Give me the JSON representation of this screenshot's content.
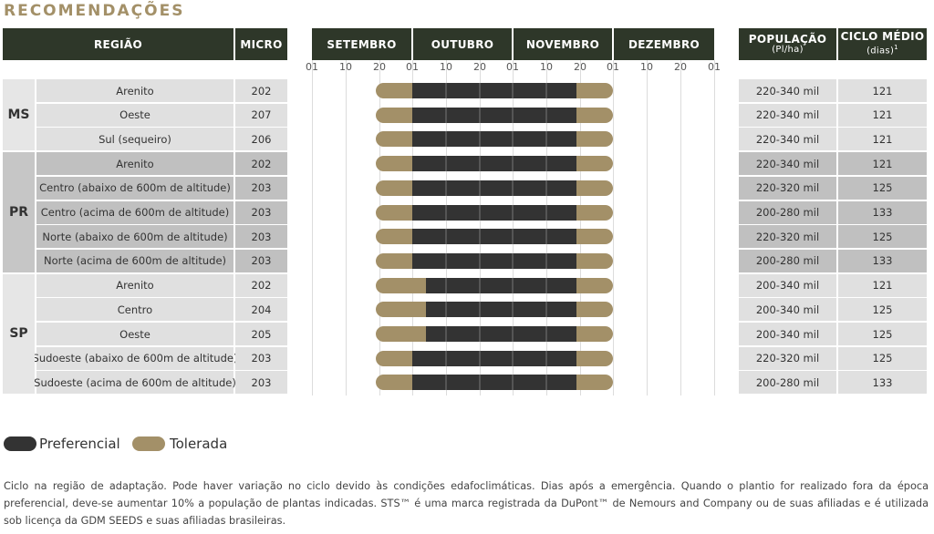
{
  "title": "RECOMENDAÇÕES",
  "headers": {
    "regiao": "REGIÃO",
    "micro": "MICRO",
    "months": [
      "SETEMBRO",
      "OUTUBRO",
      "NOVEMBRO",
      "DEZEMBRO"
    ],
    "populacao": "POPULAÇÃO",
    "populacao_sub": "(Pl/ha)",
    "ciclo": "CICLO MÉDIO",
    "ciclo_sub": "(dias)",
    "ciclo_sup": "1"
  },
  "day_ticks": [
    "01",
    "10",
    "20",
    "01",
    "10",
    "20",
    "01",
    "10",
    "20",
    "01",
    "10",
    "20",
    "01"
  ],
  "groups": [
    {
      "state": "MS",
      "rows": [
        {
          "region": "Arenito",
          "micro": "202",
          "pop": "220-340 mil",
          "ciclo": "121",
          "tolerated_start": "20 SET",
          "preferential_start": "01 OUT",
          "preferential_end": "20 NOV",
          "tolerated_end": "01 DEZ"
        },
        {
          "region": "Oeste",
          "micro": "207",
          "pop": "220-340 mil",
          "ciclo": "121",
          "tolerated_start": "20 SET",
          "preferential_start": "01 OUT",
          "preferential_end": "20 NOV",
          "tolerated_end": "01 DEZ"
        },
        {
          "region": "Sul (sequeiro)",
          "micro": "206",
          "pop": "220-340 mil",
          "ciclo": "121",
          "tolerated_start": "20 SET",
          "preferential_start": "01 OUT",
          "preferential_end": "20 NOV",
          "tolerated_end": "01 DEZ"
        }
      ]
    },
    {
      "state": "PR",
      "rows": [
        {
          "region": "Arenito",
          "micro": "202",
          "pop": "220-340 mil",
          "ciclo": "121",
          "tolerated_start": "20 SET",
          "preferential_start": "01 OUT",
          "preferential_end": "20 NOV",
          "tolerated_end": "01 DEZ"
        },
        {
          "region": "Centro (abaixo de 600m de altitude)",
          "micro": "203",
          "pop": "220-320 mil",
          "ciclo": "125",
          "tolerated_start": "20 SET",
          "preferential_start": "01 OUT",
          "preferential_end": "20 NOV",
          "tolerated_end": "01 DEZ"
        },
        {
          "region": "Centro (acima de 600m de altitude)",
          "micro": "203",
          "pop": "200-280 mil",
          "ciclo": "133",
          "tolerated_start": "20 SET",
          "preferential_start": "01 OUT",
          "preferential_end": "20 NOV",
          "tolerated_end": "01 DEZ"
        },
        {
          "region": "Norte (abaixo de 600m de altitude)",
          "micro": "203",
          "pop": "220-320 mil",
          "ciclo": "125",
          "tolerated_start": "20 SET",
          "preferential_start": "01 OUT",
          "preferential_end": "20 NOV",
          "tolerated_end": "01 DEZ"
        },
        {
          "region": "Norte (acima de 600m de altitude)",
          "micro": "203",
          "pop": "200-280 mil",
          "ciclo": "133",
          "tolerated_start": "20 SET",
          "preferential_start": "01 OUT",
          "preferential_end": "20 NOV",
          "tolerated_end": "01 DEZ"
        }
      ]
    },
    {
      "state": "SP",
      "rows": [
        {
          "region": "Arenito",
          "micro": "202",
          "pop": "200-340 mil",
          "ciclo": "121",
          "tolerated_start": "20 SET",
          "preferential_start": "05 OUT",
          "preferential_end": "20 NOV",
          "tolerated_end": "01 DEZ"
        },
        {
          "region": "Centro",
          "micro": "204",
          "pop": "200-340 mil",
          "ciclo": "125",
          "tolerated_start": "20 SET",
          "preferential_start": "05 OUT",
          "preferential_end": "20 NOV",
          "tolerated_end": "01 DEZ"
        },
        {
          "region": "Oeste",
          "micro": "205",
          "pop": "200-340 mil",
          "ciclo": "125",
          "tolerated_start": "20 SET",
          "preferential_start": "05 OUT",
          "preferential_end": "20 NOV",
          "tolerated_end": "01 DEZ"
        },
        {
          "region": "Sudoeste  (abaixo de 600m de altitude)",
          "micro": "203",
          "pop": "220-320 mil",
          "ciclo": "125",
          "tolerated_start": "20 SET",
          "preferential_start": "01 OUT",
          "preferential_end": "20 NOV",
          "tolerated_end": "01 DEZ"
        },
        {
          "region": "Sudoeste (acima de 600m de altitude)",
          "micro": "203",
          "pop": "200-280 mil",
          "ciclo": "133",
          "tolerated_start": "20 SET",
          "preferential_start": "01 OUT",
          "preferential_end": "20 NOV",
          "tolerated_end": "01 DEZ"
        }
      ]
    }
  ],
  "legend": {
    "preferencial": "Preferencial",
    "tolerada": "Tolerada"
  },
  "colors": {
    "header": "#2e3729",
    "preferencial": "#333333",
    "tolerada": "#a39068",
    "title": "#a39068"
  },
  "footnote": "Ciclo na região de adaptação. Pode haver variação no ciclo devido às condições edafoclimáticas. Dias após a emergência. Quando o plantio for realizado fora da época preferencial, deve-se aumentar 10% a população de plantas indicadas. STS™ é uma marca registrada da DuPont™ de Nemours and Company ou de suas afiliadas e é utilizada sob licença da GDM SEEDS e suas afiliadas brasileiras."
}
